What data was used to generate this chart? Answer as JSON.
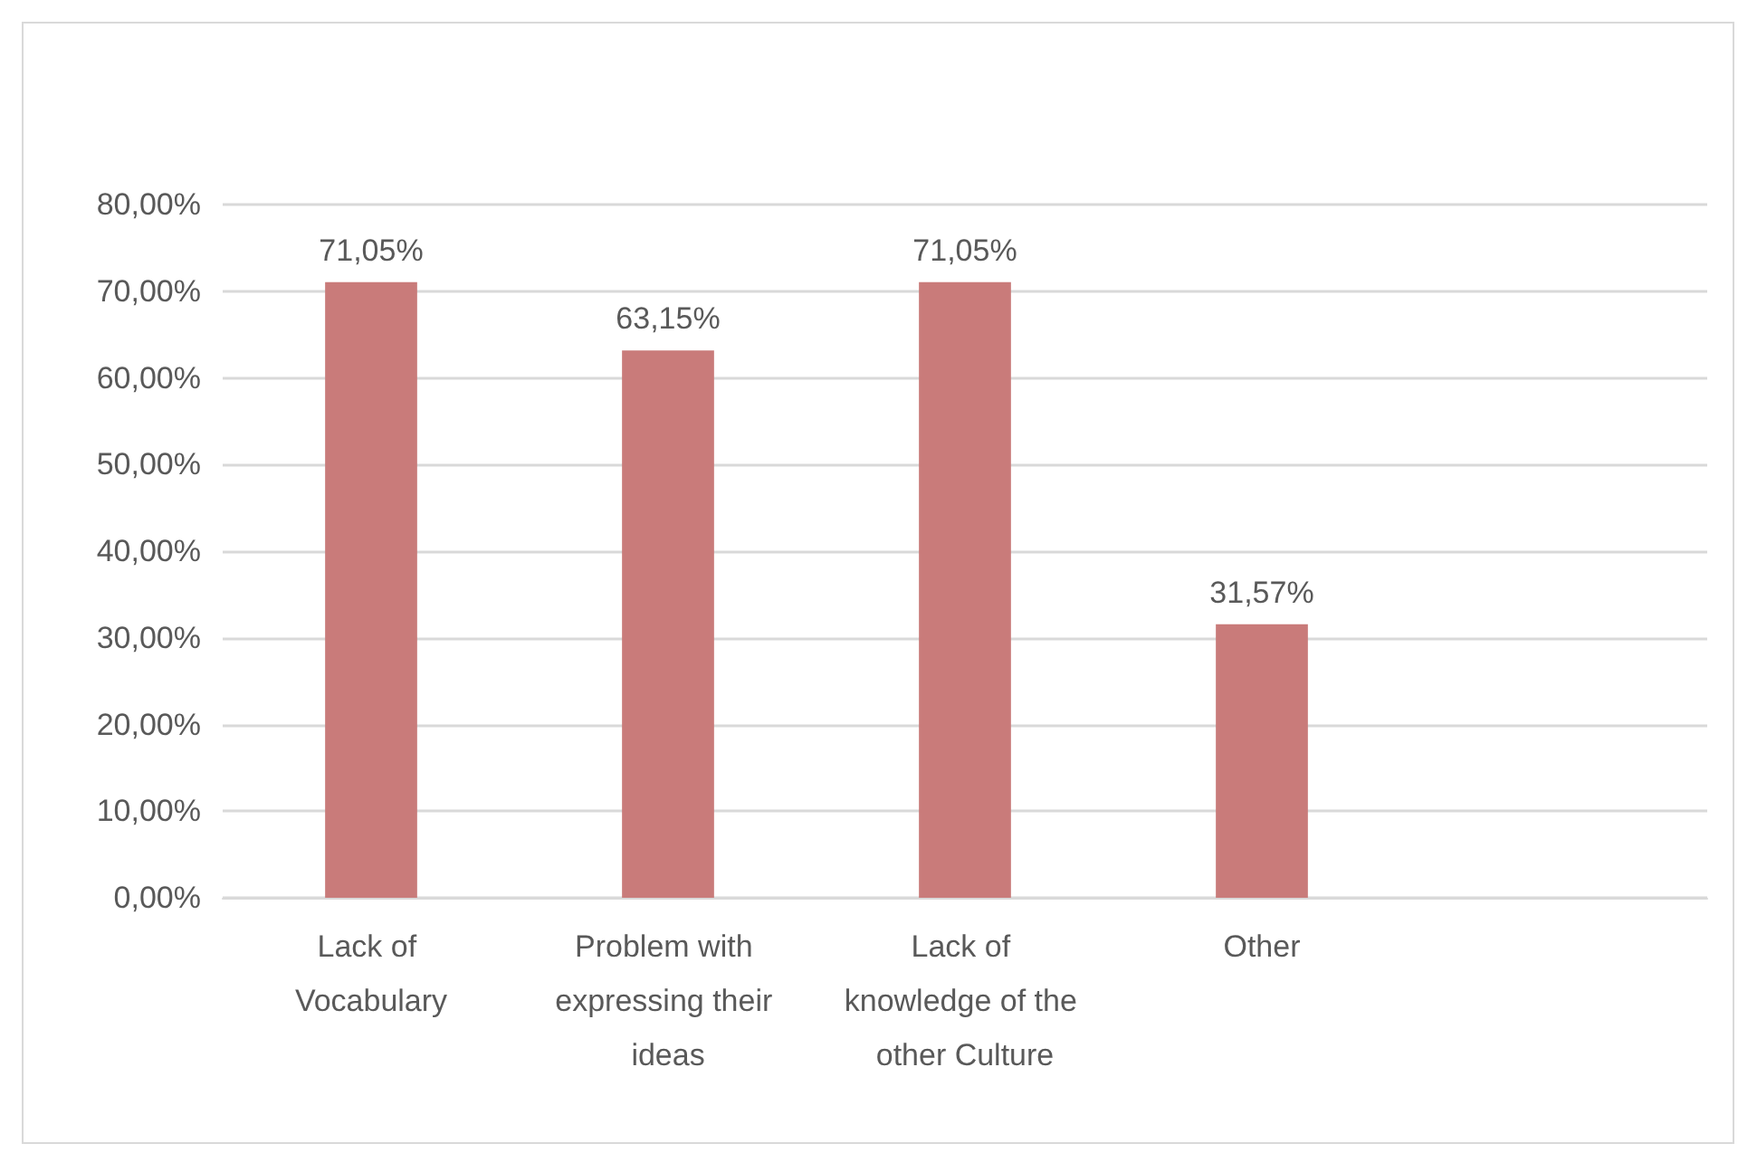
{
  "chart_data": {
    "type": "bar",
    "categories": [
      "Lack of Vocabulary",
      "Problem with expressing their ideas",
      "Lack of knowledge of the other Culture",
      "Other",
      null
    ],
    "values": [
      71.05,
      63.15,
      71.05,
      31.57,
      null
    ],
    "value_labels": [
      "71,05%",
      "63,15%",
      "71,05%",
      "31,57%",
      null
    ],
    "color": "#c97b7a",
    "ylim": [
      0,
      80
    ],
    "yticks": [
      {
        "value": 0,
        "label": "0,00%"
      },
      {
        "value": 10,
        "label": "10,00%"
      },
      {
        "value": 20,
        "label": "20,00%"
      },
      {
        "value": 30,
        "label": "30,00%"
      },
      {
        "value": 40,
        "label": "40,00%"
      },
      {
        "value": 50,
        "label": "50,00%"
      },
      {
        "value": 60,
        "label": "60,00%"
      },
      {
        "value": 70,
        "label": "70,00%"
      },
      {
        "value": 80,
        "label": "80,00%"
      }
    ],
    "grid": "y"
  }
}
